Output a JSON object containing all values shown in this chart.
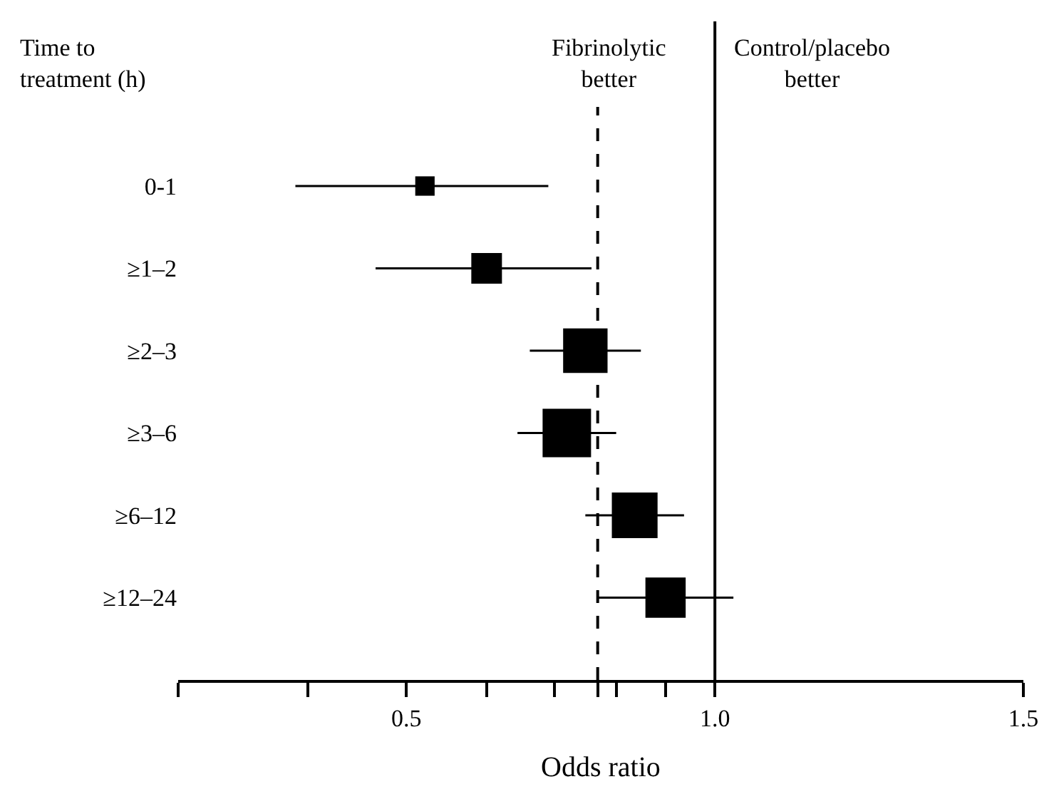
{
  "chart_data": {
    "type": "bubble",
    "orientation": "horizontal",
    "marker": "square",
    "color": "#000000",
    "categories": [
      "0-1",
      "≥1–2",
      "≥2–3",
      "≥3–6",
      "≥6–12",
      "≥12–24"
    ],
    "values": [
      0.53,
      0.63,
      0.79,
      0.76,
      0.87,
      0.92
    ],
    "errors": [
      [
        0.32,
        0.73
      ],
      [
        0.45,
        0.8
      ],
      [
        0.7,
        0.88
      ],
      [
        0.68,
        0.84
      ],
      [
        0.79,
        0.95
      ],
      [
        0.81,
        1.03
      ]
    ],
    "sizes": [
      0.16,
      0.4,
      0.84,
      1,
      0.89,
      0.69
    ],
    "xlim": [
      0.13,
      1.5
    ],
    "xticks": [
      {
        "value": 0.13,
        "label": null
      },
      {
        "value": 0.34,
        "label": null
      },
      0.5,
      {
        "value": 0.63,
        "label": null
      },
      {
        "value": 0.74,
        "label": null
      },
      {
        "value": 0.81,
        "label": null
      },
      {
        "value": 0.84,
        "label": null
      },
      {
        "value": 0.92,
        "label": null
      },
      {
        "value": 1.0,
        "label": "1.0"
      },
      1.5
    ],
    "xlabel": "Odds ratio",
    "ref_lines": [
      {
        "axis": "x",
        "value": 0.81,
        "line_style": "dashed",
        "color": "#000000"
      },
      {
        "axis": "x",
        "value": 1.0,
        "line_style": "solid",
        "color": "#000000"
      }
    ],
    "annotations": [
      "Time to\ntreatment (h)",
      "Fibrinolytic\nbetter",
      "Control/placebo\nbetter"
    ]
  }
}
